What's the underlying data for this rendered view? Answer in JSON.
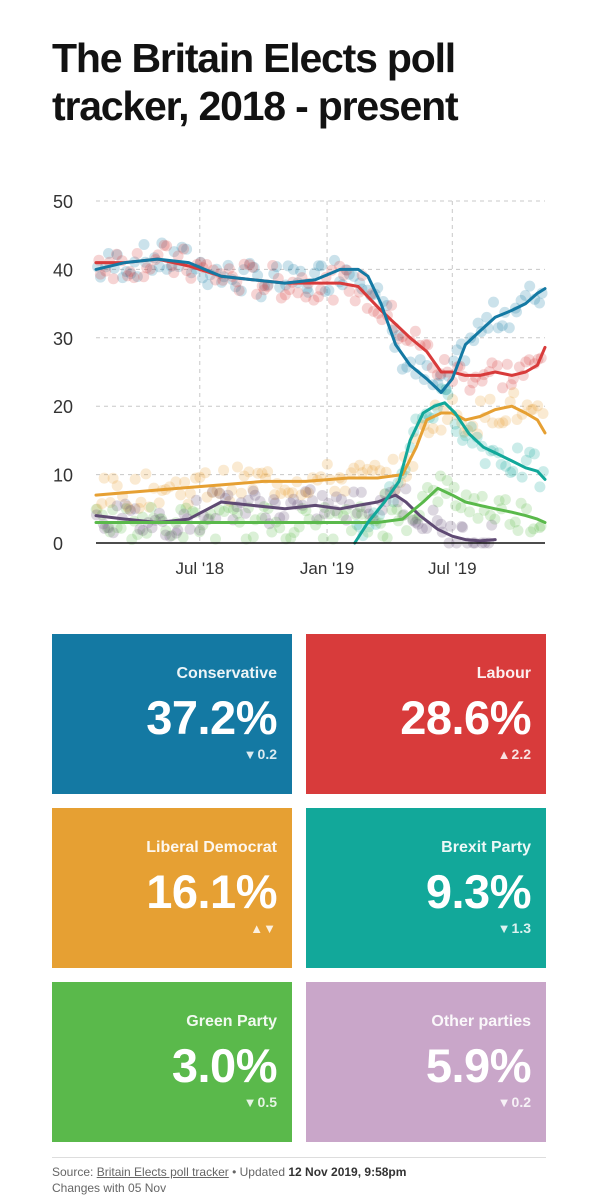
{
  "title": "The Britain Elects poll tracker, 2018 - present",
  "chart_data": {
    "type": "line",
    "y_ticks": [
      "50",
      "40",
      "30",
      "20",
      "10",
      "0"
    ],
    "ylim": [
      0,
      50
    ],
    "x_ticks": [
      "Jul '18",
      "Jan '19",
      "Jul '19"
    ],
    "x_tick_dates": [
      "2018-07-01",
      "2019-01-01",
      "2019-07-01"
    ],
    "xlim": [
      "2018-02-01",
      "2019-11-12"
    ],
    "grid": "dashed",
    "series": [
      {
        "key": "conservative",
        "color": "#1479a3",
        "x": [
          "2018-02-01",
          "2018-03-15",
          "2018-05-01",
          "2018-06-15",
          "2018-08-01",
          "2018-09-15",
          "2018-11-01",
          "2018-12-15",
          "2019-01-20",
          "2019-02-15",
          "2019-03-01",
          "2019-03-20",
          "2019-04-10",
          "2019-05-01",
          "2019-05-25",
          "2019-06-15",
          "2019-07-01",
          "2019-07-20",
          "2019-08-10",
          "2019-09-01",
          "2019-09-25",
          "2019-10-15",
          "2019-11-01",
          "2019-11-12"
        ],
        "y": [
          40,
          41,
          41.5,
          41,
          39,
          38.5,
          38,
          38.5,
          40,
          40,
          39,
          35,
          29,
          26,
          24,
          22,
          24,
          29,
          31,
          33,
          34,
          35,
          36.5,
          37.2
        ]
      },
      {
        "key": "labour",
        "color": "#d83b3b",
        "x": [
          "2018-02-01",
          "2018-03-15",
          "2018-05-01",
          "2018-06-15",
          "2018-08-01",
          "2018-09-15",
          "2018-11-01",
          "2018-12-15",
          "2019-01-20",
          "2019-02-15",
          "2019-03-01",
          "2019-03-20",
          "2019-04-10",
          "2019-05-01",
          "2019-05-25",
          "2019-06-15",
          "2019-07-01",
          "2019-07-20",
          "2019-08-10",
          "2019-09-01",
          "2019-09-25",
          "2019-10-15",
          "2019-11-01",
          "2019-11-12"
        ],
        "y": [
          41,
          41,
          41.5,
          40.5,
          39,
          38.5,
          38,
          38,
          38,
          37.5,
          36,
          34,
          32,
          30,
          28,
          25,
          25,
          24.5,
          24.5,
          25,
          24.5,
          25,
          26,
          28.6
        ]
      },
      {
        "key": "libdem",
        "color": "#e6a033",
        "x": [
          "2018-02-01",
          "2018-04-01",
          "2018-06-01",
          "2018-08-01",
          "2018-10-01",
          "2018-12-01",
          "2019-02-01",
          "2019-03-15",
          "2019-04-20",
          "2019-05-10",
          "2019-05-25",
          "2019-06-15",
          "2019-07-01",
          "2019-07-20",
          "2019-08-10",
          "2019-09-01",
          "2019-09-25",
          "2019-10-15",
          "2019-11-01",
          "2019-11-12"
        ],
        "y": [
          7,
          7.5,
          8,
          8.5,
          9,
          9,
          9.5,
          9.5,
          10,
          14,
          18,
          19,
          19,
          18,
          18.5,
          19.5,
          20,
          19,
          18,
          16.1
        ]
      },
      {
        "key": "brexit",
        "color": "#12a89a",
        "x": [
          "2019-02-10",
          "2019-03-01",
          "2019-03-25",
          "2019-04-15",
          "2019-05-01",
          "2019-05-20",
          "2019-06-05",
          "2019-06-20",
          "2019-07-05",
          "2019-07-25",
          "2019-08-15",
          "2019-09-05",
          "2019-09-25",
          "2019-10-15",
          "2019-11-01",
          "2019-11-12"
        ],
        "y": [
          0,
          3,
          6,
          9,
          15,
          19,
          20,
          20.5,
          19,
          16,
          14,
          13,
          12,
          11,
          10.5,
          9.3
        ]
      },
      {
        "key": "green",
        "color": "#5ab94b",
        "x": [
          "2018-02-01",
          "2018-04-01",
          "2018-06-01",
          "2018-08-01",
          "2018-10-01",
          "2018-12-01",
          "2019-02-01",
          "2019-03-15",
          "2019-04-20",
          "2019-05-20",
          "2019-06-10",
          "2019-07-01",
          "2019-07-20",
          "2019-08-10",
          "2019-09-01",
          "2019-09-25",
          "2019-10-15",
          "2019-11-01",
          "2019-11-12"
        ],
        "y": [
          3,
          3,
          3,
          3,
          3,
          3,
          3,
          3,
          3.5,
          6,
          8,
          7,
          6,
          5.5,
          5,
          4.5,
          4,
          3.5,
          3.0
        ]
      },
      {
        "key": "other",
        "color": "#5f4a73",
        "x": [
          "2018-02-01",
          "2018-03-15",
          "2018-05-01",
          "2018-06-15",
          "2018-08-01",
          "2018-09-15",
          "2018-11-01",
          "2018-12-15",
          "2019-01-20",
          "2019-02-15",
          "2019-03-15",
          "2019-04-10",
          "2019-04-25",
          "2019-05-15",
          "2019-06-10",
          "2019-07-01",
          "2019-07-20",
          "2019-08-10",
          "2019-09-01"
        ],
        "y": [
          4,
          3.5,
          3,
          3.5,
          6,
          5.5,
          5,
          5.5,
          5,
          5.5,
          6,
          7,
          6,
          4,
          2,
          1,
          0.5,
          0.3,
          0.5
        ]
      }
    ]
  },
  "cards": [
    {
      "name": "Conservative",
      "pct": "37.2%",
      "arrow": "▼",
      "change": "0.2",
      "color": "#1479a3"
    },
    {
      "name": "Labour",
      "pct": "28.6%",
      "arrow": "▲",
      "change": "2.2",
      "color": "#d83b3b"
    },
    {
      "name": "Liberal Democrat",
      "pct": "16.1%",
      "arrow": "▲▼",
      "change": "",
      "color": "#e6a033"
    },
    {
      "name": "Brexit Party",
      "pct": "9.3%",
      "arrow": "▼",
      "change": "1.3",
      "color": "#12a89a"
    },
    {
      "name": "Green Party",
      "pct": "3.0%",
      "arrow": "▼",
      "change": "0.5",
      "color": "#5ab94b"
    },
    {
      "name": "Other parties",
      "pct": "5.9%",
      "arrow": "▼",
      "change": "0.2",
      "color": "#c9a6c9"
    }
  ],
  "footer": {
    "source_label": "Source:",
    "source_link": "Britain Elects poll tracker",
    "updated_label": "• Updated",
    "updated_value": "12 Nov 2019, 9:58pm",
    "changes_text": "Changes with 05 Nov"
  }
}
